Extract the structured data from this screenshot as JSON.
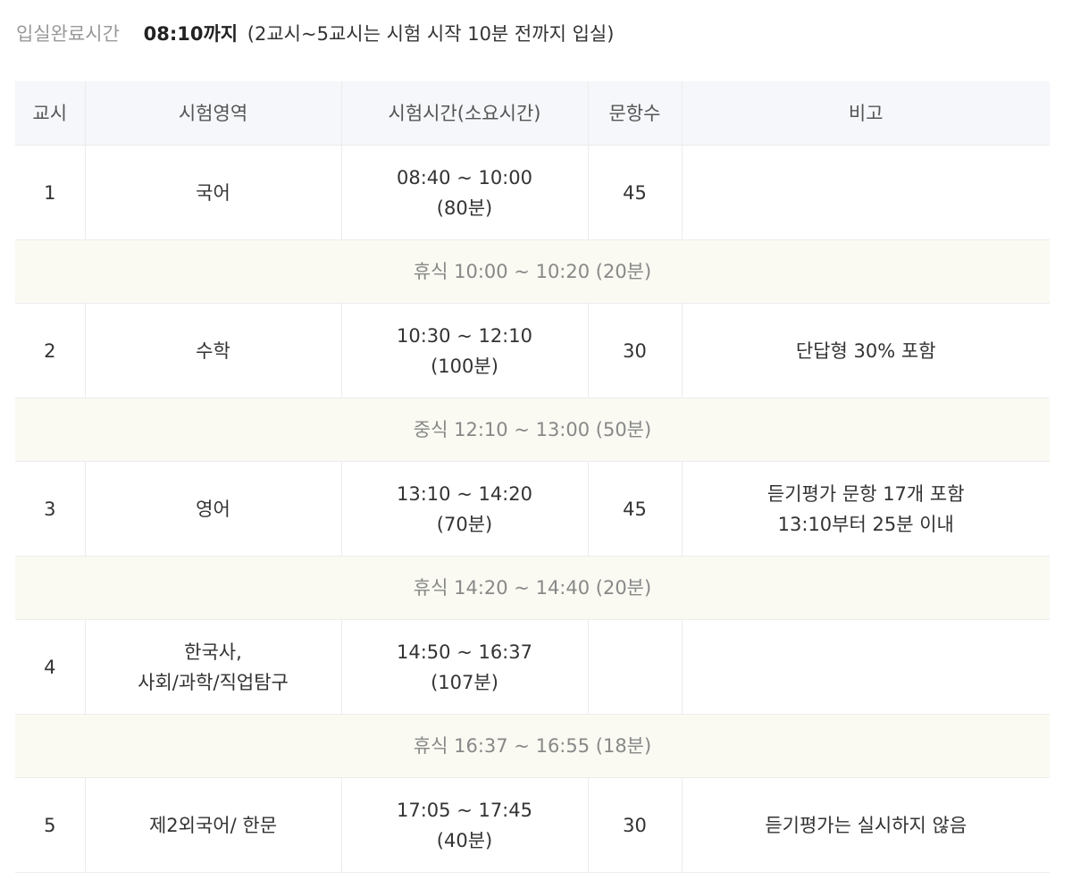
{
  "notice": {
    "label": "입실완료시간",
    "time": "08:10까지",
    "detail": "(2교시~5교시는 시험 시작 10분 전까지 입실)"
  },
  "headers": [
    "교시",
    "시험영역",
    "시험시간(소요시간)",
    "문항수",
    "비고"
  ],
  "rows": [
    {
      "period": "1",
      "subject": "국어",
      "time": "08:40 ~ 10:00",
      "duration": "(80분)",
      "count": "45",
      "note1": "",
      "note2": ""
    },
    {
      "break": "휴식 10:00 ~ 10:20 (20분)"
    },
    {
      "period": "2",
      "subject": "수학",
      "time": "10:30 ~ 12:10",
      "duration": "(100분)",
      "count": "30",
      "note1": "단답형 30% 포함",
      "note2": ""
    },
    {
      "break": "중식 12:10 ~ 13:00 (50분)"
    },
    {
      "period": "3",
      "subject": "영어",
      "time": "13:10 ~ 14:20",
      "duration": "(70분)",
      "count": "45",
      "note1": "듣기평가 문항 17개 포함",
      "note2": "13:10부터 25분 이내"
    },
    {
      "break": "휴식 14:20 ~ 14:40 (20분)"
    },
    {
      "period": "4",
      "subject": "한국사,",
      "subject2": "사회/과학/직업탐구",
      "time": "14:50 ~ 16:37",
      "duration": "(107분)",
      "count": "",
      "note1": "",
      "note2": ""
    },
    {
      "break": "휴식 16:37 ~ 16:55 (18분)"
    },
    {
      "period": "5",
      "subject": "제2외국어/ 한문",
      "time": "17:05 ~ 17:45",
      "duration": "(40분)",
      "count": "30",
      "note1": "듣기평가는 실시하지 않음",
      "note2": ""
    }
  ]
}
